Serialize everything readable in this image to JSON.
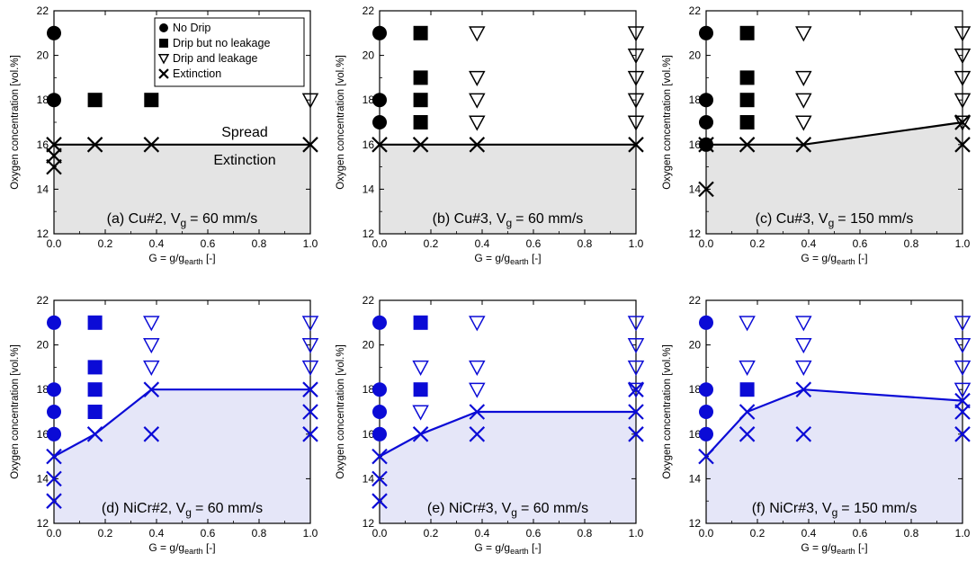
{
  "figure": {
    "legend": {
      "entries": [
        {
          "marker": "circle-filled",
          "label": "No Drip"
        },
        {
          "marker": "square-filled",
          "label": "Drip but no leakage"
        },
        {
          "marker": "triangle-down-open",
          "label": "Drip and leakage"
        },
        {
          "marker": "x-cross",
          "label": "Extinction"
        }
      ]
    },
    "region_labels": {
      "spread": "Spread",
      "extinction": "Extinction"
    },
    "x_label": {
      "main": "G = g/g",
      "sub": "earth",
      "unit": " [-]"
    },
    "y_label": "Oxygen concentration [vol.%]",
    "colors": {
      "black": "#000000",
      "blue": "#0b0bd6",
      "gray_fill": "#e4e4e4",
      "blue_fill": "#e5e6f8"
    }
  },
  "chart_data": [
    {
      "type": "scatter",
      "panel": "a",
      "title": {
        "pre": "(a) Cu#2, V",
        "sub": "g",
        "post": "= 60 mm/s"
      },
      "color": "black",
      "show_legend": true,
      "show_region_labels": true,
      "xlim": [
        0,
        1
      ],
      "ylim": [
        12,
        22
      ],
      "x_ticks": [
        "0.0",
        "0.2",
        "0.4",
        "0.6",
        "0.8",
        "1.0"
      ],
      "y_ticks": [
        "12",
        "14",
        "16",
        "18",
        "20",
        "22"
      ],
      "boundary": [
        [
          0,
          16
        ],
        [
          0.16,
          16
        ],
        [
          0.38,
          16
        ],
        [
          1.0,
          16
        ]
      ],
      "series": [
        {
          "name": "No Drip",
          "marker": "circle-filled",
          "points": [
            [
              0,
              21
            ],
            [
              0,
              18
            ]
          ]
        },
        {
          "name": "Drip but no leakage",
          "marker": "square-filled",
          "points": [
            [
              0.16,
              18
            ],
            [
              0.38,
              18
            ]
          ]
        },
        {
          "name": "Drip and leakage",
          "marker": "triangle-down-open",
          "points": [
            [
              1.0,
              18
            ]
          ]
        },
        {
          "name": "Extinction",
          "marker": "x-cross",
          "points": [
            [
              0,
              16
            ],
            [
              0,
              15.5
            ],
            [
              0,
              15
            ],
            [
              0.16,
              16
            ],
            [
              0.38,
              16
            ],
            [
              1.0,
              16
            ]
          ]
        }
      ]
    },
    {
      "type": "scatter",
      "panel": "b",
      "title": {
        "pre": "(b) Cu#3, V",
        "sub": "g",
        "post": "= 60 mm/s"
      },
      "color": "black",
      "xlim": [
        0,
        1
      ],
      "ylim": [
        12,
        22
      ],
      "x_ticks": [
        "0.0",
        "0.2",
        "0.4",
        "0.6",
        "0.8",
        "1.0"
      ],
      "y_ticks": [
        "12",
        "14",
        "16",
        "18",
        "20",
        "22"
      ],
      "boundary": [
        [
          0,
          16
        ],
        [
          0.16,
          16
        ],
        [
          0.38,
          16
        ],
        [
          1.0,
          16
        ]
      ],
      "series": [
        {
          "name": "No Drip",
          "marker": "circle-filled",
          "points": [
            [
              0,
              21
            ],
            [
              0,
              18
            ],
            [
              0,
              17
            ]
          ]
        },
        {
          "name": "Drip but no leakage",
          "marker": "square-filled",
          "points": [
            [
              0.16,
              21
            ],
            [
              0.16,
              19
            ],
            [
              0.16,
              18
            ],
            [
              0.16,
              17
            ]
          ]
        },
        {
          "name": "Drip and leakage",
          "marker": "triangle-down-open",
          "points": [
            [
              0.38,
              21
            ],
            [
              0.38,
              19
            ],
            [
              0.38,
              18
            ],
            [
              0.38,
              17
            ],
            [
              1.0,
              21
            ],
            [
              1.0,
              20
            ],
            [
              1.0,
              19
            ],
            [
              1.0,
              18
            ],
            [
              1.0,
              17
            ]
          ]
        },
        {
          "name": "Extinction",
          "marker": "x-cross",
          "points": [
            [
              0,
              16
            ],
            [
              0.16,
              16
            ],
            [
              0.38,
              16
            ],
            [
              1.0,
              16
            ]
          ]
        }
      ]
    },
    {
      "type": "scatter",
      "panel": "c",
      "title": {
        "pre": "(c) Cu#3, V",
        "sub": "g",
        "post": "= 150 mm/s"
      },
      "color": "black",
      "xlim": [
        0,
        1
      ],
      "ylim": [
        12,
        22
      ],
      "x_ticks": [
        "0.0",
        "0.2",
        "0.4",
        "0.6",
        "0.8",
        "1.0"
      ],
      "y_ticks": [
        "12",
        "14",
        "16",
        "18",
        "20",
        "22"
      ],
      "boundary": [
        [
          0,
          16
        ],
        [
          0.16,
          16
        ],
        [
          0.38,
          16
        ],
        [
          1.0,
          17
        ]
      ],
      "series": [
        {
          "name": "No Drip",
          "marker": "circle-filled",
          "points": [
            [
              0,
              21
            ],
            [
              0,
              18
            ],
            [
              0,
              17
            ],
            [
              0,
              16
            ]
          ]
        },
        {
          "name": "Drip but no leakage",
          "marker": "square-filled",
          "points": [
            [
              0.16,
              21
            ],
            [
              0.16,
              19
            ],
            [
              0.16,
              18
            ],
            [
              0.16,
              17
            ]
          ]
        },
        {
          "name": "Drip and leakage",
          "marker": "triangle-down-open",
          "points": [
            [
              0.38,
              21
            ],
            [
              0.38,
              19
            ],
            [
              0.38,
              18
            ],
            [
              0.38,
              17
            ],
            [
              1.0,
              21
            ],
            [
              1.0,
              20
            ],
            [
              1.0,
              19
            ],
            [
              1.0,
              18
            ],
            [
              1.0,
              17
            ]
          ]
        },
        {
          "name": "Extinction",
          "marker": "x-cross",
          "points": [
            [
              0,
              16
            ],
            [
              0,
              14
            ],
            [
              0.16,
              16
            ],
            [
              0.38,
              16
            ],
            [
              1.0,
              17
            ],
            [
              1.0,
              16
            ]
          ]
        }
      ]
    },
    {
      "type": "scatter",
      "panel": "d",
      "title": {
        "pre": "(d) NiCr#2, V",
        "sub": "g",
        "post": "= 60 mm/s"
      },
      "color": "blue",
      "xlim": [
        0,
        1
      ],
      "ylim": [
        12,
        22
      ],
      "x_ticks": [
        "0.0",
        "0.2",
        "0.4",
        "0.6",
        "0.8",
        "1.0"
      ],
      "y_ticks": [
        "12",
        "14",
        "16",
        "18",
        "20",
        "22"
      ],
      "boundary": [
        [
          0,
          15
        ],
        [
          0.16,
          16
        ],
        [
          0.38,
          18
        ],
        [
          1.0,
          18
        ]
      ],
      "series": [
        {
          "name": "No Drip",
          "marker": "circle-filled",
          "points": [
            [
              0,
              21
            ],
            [
              0,
              18
            ],
            [
              0,
              17
            ],
            [
              0,
              16
            ]
          ]
        },
        {
          "name": "Drip but no leakage",
          "marker": "square-filled",
          "points": [
            [
              0.16,
              21
            ],
            [
              0.16,
              19
            ],
            [
              0.16,
              18
            ],
            [
              0.16,
              17
            ]
          ]
        },
        {
          "name": "Drip and leakage",
          "marker": "triangle-down-open",
          "points": [
            [
              0.38,
              21
            ],
            [
              0.38,
              20
            ],
            [
              0.38,
              19
            ],
            [
              1.0,
              21
            ],
            [
              1.0,
              20
            ],
            [
              1.0,
              19
            ]
          ]
        },
        {
          "name": "Extinction",
          "marker": "x-cross",
          "points": [
            [
              0,
              15
            ],
            [
              0,
              14
            ],
            [
              0,
              13
            ],
            [
              0.16,
              16
            ],
            [
              0.38,
              18
            ],
            [
              0.38,
              16
            ],
            [
              1.0,
              18
            ],
            [
              1.0,
              17
            ],
            [
              1.0,
              16
            ]
          ]
        }
      ]
    },
    {
      "type": "scatter",
      "panel": "e",
      "title": {
        "pre": "(e) NiCr#3, V",
        "sub": "g",
        "post": "= 60 mm/s"
      },
      "color": "blue",
      "xlim": [
        0,
        1
      ],
      "ylim": [
        12,
        22
      ],
      "x_ticks": [
        "0.0",
        "0.2",
        "0.4",
        "0.6",
        "0.8",
        "1.0"
      ],
      "y_ticks": [
        "12",
        "14",
        "16",
        "18",
        "20",
        "22"
      ],
      "boundary": [
        [
          0,
          15
        ],
        [
          0.16,
          16
        ],
        [
          0.38,
          17
        ],
        [
          1.0,
          17
        ]
      ],
      "series": [
        {
          "name": "No Drip",
          "marker": "circle-filled",
          "points": [
            [
              0,
              21
            ],
            [
              0,
              18
            ],
            [
              0,
              17
            ],
            [
              0,
              16
            ]
          ]
        },
        {
          "name": "Drip but no leakage",
          "marker": "square-filled",
          "points": [
            [
              0.16,
              21
            ],
            [
              0.16,
              18
            ]
          ]
        },
        {
          "name": "Drip and leakage",
          "marker": "triangle-down-open",
          "points": [
            [
              0.16,
              19
            ],
            [
              0.16,
              17
            ],
            [
              0.38,
              21
            ],
            [
              0.38,
              19
            ],
            [
              0.38,
              18
            ],
            [
              1.0,
              21
            ],
            [
              1.0,
              20
            ],
            [
              1.0,
              19
            ],
            [
              1.0,
              18
            ]
          ]
        },
        {
          "name": "Extinction",
          "marker": "x-cross",
          "points": [
            [
              0,
              15
            ],
            [
              0,
              14
            ],
            [
              0,
              13
            ],
            [
              0.16,
              16
            ],
            [
              0.38,
              17
            ],
            [
              0.38,
              16
            ],
            [
              1.0,
              18
            ],
            [
              1.0,
              17
            ],
            [
              1.0,
              16
            ]
          ]
        }
      ]
    },
    {
      "type": "scatter",
      "panel": "f",
      "title": {
        "pre": "(f) NiCr#3, V",
        "sub": "g",
        "post": "= 150 mm/s"
      },
      "color": "blue",
      "xlim": [
        0,
        1
      ],
      "ylim": [
        12,
        22
      ],
      "x_ticks": [
        "0.0",
        "0.2",
        "0.4",
        "0.6",
        "0.8",
        "1.0"
      ],
      "y_ticks": [
        "12",
        "14",
        "16",
        "18",
        "20",
        "22"
      ],
      "boundary": [
        [
          0,
          15
        ],
        [
          0.16,
          17
        ],
        [
          0.38,
          18
        ],
        [
          1.0,
          17.5
        ]
      ],
      "series": [
        {
          "name": "No Drip",
          "marker": "circle-filled",
          "points": [
            [
              0,
              21
            ],
            [
              0,
              18
            ],
            [
              0,
              17
            ],
            [
              0,
              16
            ]
          ]
        },
        {
          "name": "Drip but no leakage",
          "marker": "square-filled",
          "points": [
            [
              0.16,
              18
            ]
          ]
        },
        {
          "name": "Drip and leakage",
          "marker": "triangle-down-open",
          "points": [
            [
              0.16,
              21
            ],
            [
              0.16,
              19
            ],
            [
              0.38,
              21
            ],
            [
              0.38,
              20
            ],
            [
              0.38,
              19
            ],
            [
              1.0,
              21
            ],
            [
              1.0,
              20
            ],
            [
              1.0,
              19
            ],
            [
              1.0,
              18
            ]
          ]
        },
        {
          "name": "Extinction",
          "marker": "x-cross",
          "points": [
            [
              0,
              15
            ],
            [
              0.16,
              17
            ],
            [
              0.16,
              16
            ],
            [
              0.38,
              18
            ],
            [
              0.38,
              16
            ],
            [
              1.0,
              17.5
            ],
            [
              1.0,
              17
            ],
            [
              1.0,
              16
            ]
          ]
        }
      ]
    }
  ]
}
